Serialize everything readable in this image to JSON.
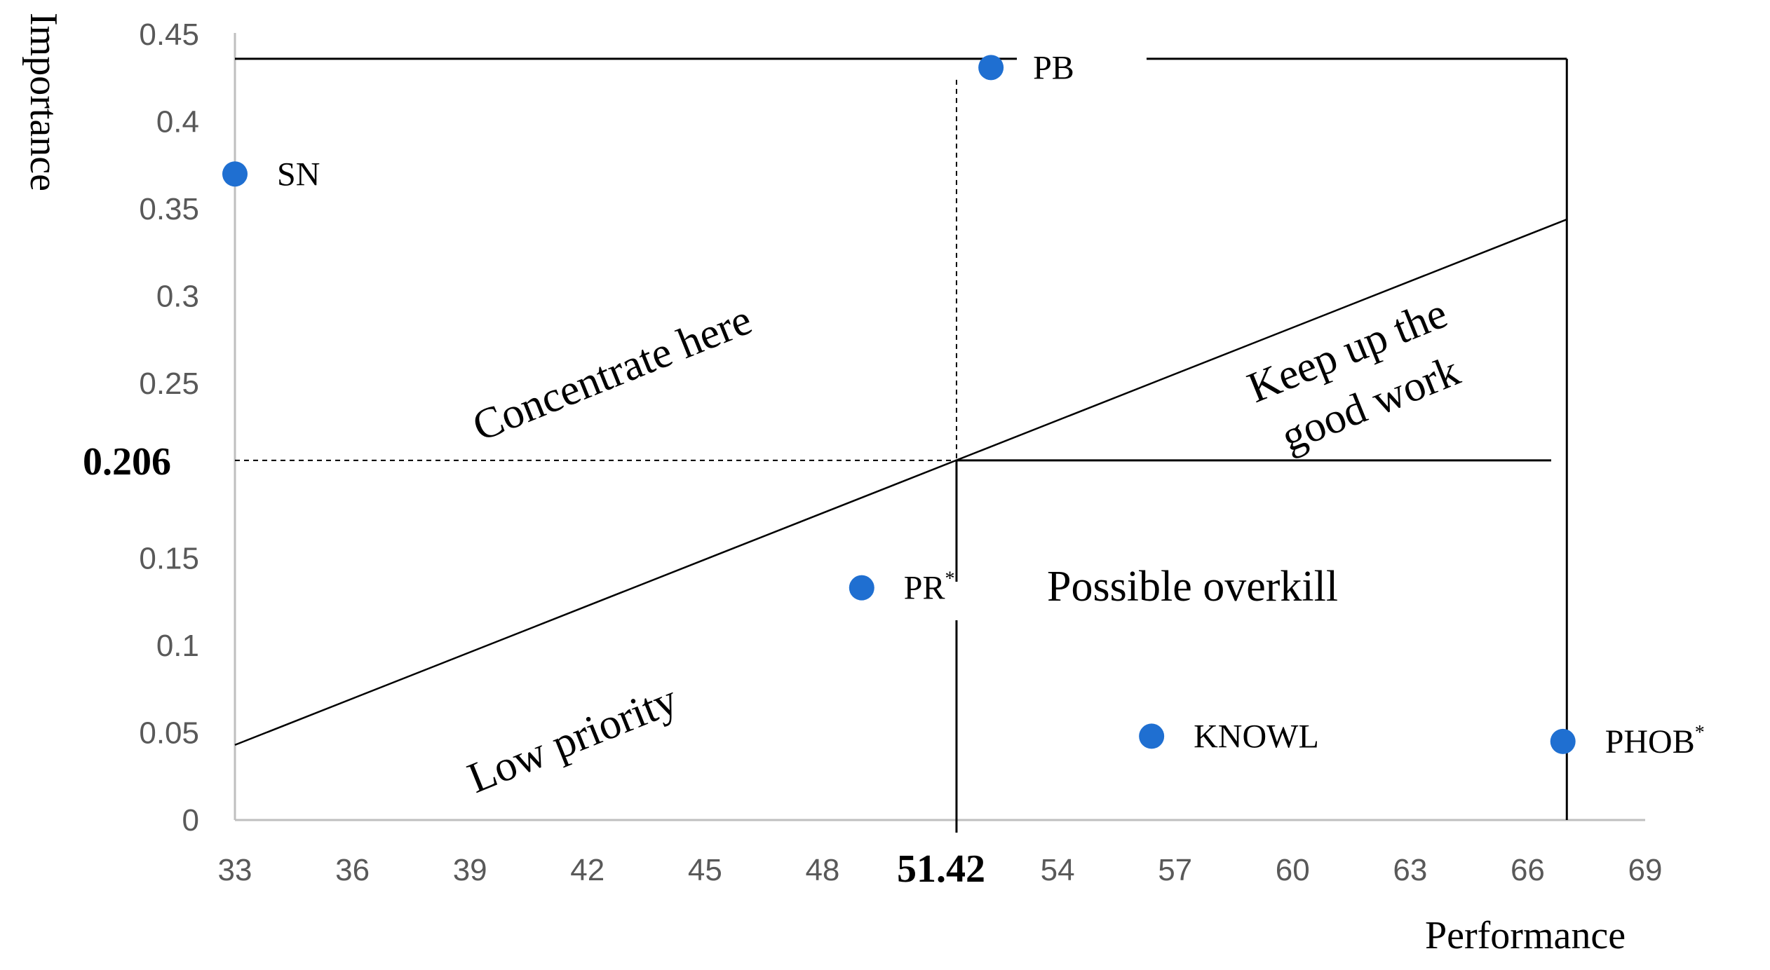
{
  "chart_data": {
    "type": "scatter",
    "title": "",
    "xlabel": "Performance",
    "ylabel": "Importance",
    "xlim": [
      33,
      69
    ],
    "ylim": [
      0,
      0.45
    ],
    "x_ticks": [
      "33",
      "36",
      "39",
      "42",
      "45",
      "48",
      "",
      "54",
      "57",
      "60",
      "63",
      "66",
      "69"
    ],
    "y_ticks": [
      "0",
      "0.05",
      "0.1",
      "0.15",
      "",
      "0.25",
      "0.3",
      "0.35",
      "0.4",
      "0.45"
    ],
    "grid": false,
    "legend": "none",
    "point_color": "#1F6FD1",
    "points": [
      {
        "label": "SN",
        "sup": "",
        "x": 33.0,
        "y": 0.37
      },
      {
        "label": "PB",
        "sup": "",
        "x": 52.3,
        "y": 0.431
      },
      {
        "label": "PR",
        "sup": "*",
        "x": 49.0,
        "y": 0.133
      },
      {
        "label": "KNOWL",
        "sup": "",
        "x": 56.4,
        "y": 0.048
      },
      {
        "label": "PHOB",
        "sup": "*",
        "x": 66.9,
        "y": 0.045
      }
    ],
    "reference_x": {
      "value": 51.42,
      "label": "51.42"
    },
    "reference_y": {
      "value": 0.206,
      "label": "0.206"
    },
    "diagonal": {
      "x1": 33,
      "y1": 0.043,
      "x2": 67,
      "y2": 0.344
    },
    "frame": {
      "x_right": 67,
      "y_top": 0.436
    },
    "zones": [
      "Concentrate here",
      "Keep up the",
      "good work",
      "Possible overkill",
      "Low priority"
    ]
  }
}
